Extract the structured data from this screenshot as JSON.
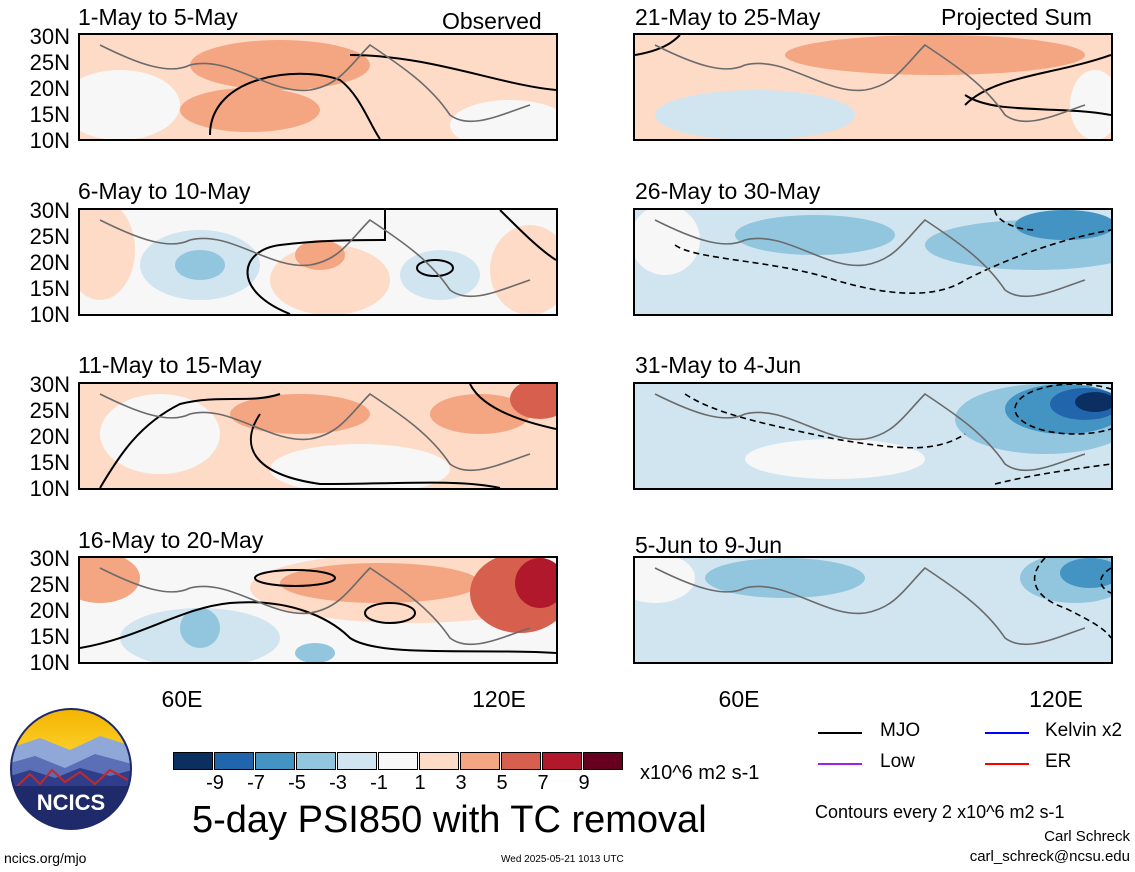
{
  "header": {
    "observed_label": "Observed",
    "projected_label": "Projected Sum"
  },
  "panels_left": [
    {
      "title": "1-May to 5-May"
    },
    {
      "title": "6-May to 10-May"
    },
    {
      "title": "11-May to 15-May"
    },
    {
      "title": "16-May to 20-May"
    }
  ],
  "panels_right": [
    {
      "title": "21-May to 25-May"
    },
    {
      "title": "26-May to 30-May"
    },
    {
      "title": "31-May to 4-Jun"
    },
    {
      "title": "5-Jun to 9-Jun"
    }
  ],
  "lat_ticks": [
    "30N",
    "25N",
    "20N",
    "15N",
    "10N"
  ],
  "lon_ticks": [
    "60E",
    "120E"
  ],
  "colorbar": {
    "colors": [
      "#0b2f60",
      "#2166ac",
      "#4393c3",
      "#92c5de",
      "#d1e5f0",
      "#f7f7f7",
      "#fddbc7",
      "#f4a582",
      "#d6604d",
      "#b2182b",
      "#67001f"
    ],
    "labels": [
      "-9",
      "-7",
      "-5",
      "-3",
      "-1",
      "1",
      "3",
      "5",
      "7",
      "9"
    ],
    "units": "x10^6 m2 s-1"
  },
  "main_title": "5-day PSI850 with TC removal",
  "legend": {
    "mjo": {
      "label": "MJO",
      "color": "#000000"
    },
    "kelvin": {
      "label": "Kelvin x2",
      "color": "#0000ff"
    },
    "low": {
      "label": "Low",
      "color": "#a020f0"
    },
    "er": {
      "label": "ER",
      "color": "#ff0000"
    }
  },
  "contour_note": "Contours every 2 x10^6 m2 s-1",
  "author": "Carl Schreck",
  "email": "carl_schreck@ncsu.edu",
  "site": "ncics.org/mjo",
  "timestamp": "Wed 2025-05-21 1013 UTC",
  "logo_text": "NCICS"
}
